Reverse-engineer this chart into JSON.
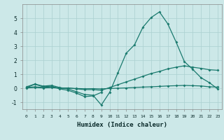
{
  "xlabel": "Humidex (Indice chaleur)",
  "bg_color": "#cce8e8",
  "grid_color": "#aacfcf",
  "line_color": "#1a7a6e",
  "xlim": [
    -0.5,
    23.5
  ],
  "ylim": [
    -1.5,
    6.0
  ],
  "x": [
    0,
    1,
    2,
    3,
    4,
    5,
    6,
    7,
    8,
    9,
    10,
    11,
    12,
    13,
    14,
    15,
    16,
    17,
    18,
    19,
    20,
    21,
    22,
    23
  ],
  "line1": [
    0.1,
    0.3,
    0.15,
    0.2,
    0.05,
    -0.05,
    -0.25,
    -0.45,
    -0.5,
    -1.2,
    -0.3,
    1.1,
    2.5,
    3.1,
    4.35,
    5.05,
    5.45,
    4.6,
    3.3,
    1.9,
    1.35,
    0.75,
    0.4,
    -0.05
  ],
  "line2_x": [
    0,
    1,
    2,
    3,
    4,
    5,
    6,
    7,
    8,
    9
  ],
  "line2_y": [
    0.05,
    0.28,
    0.1,
    0.15,
    -0.05,
    -0.15,
    -0.35,
    -0.6,
    -0.55,
    -0.3
  ],
  "line3": [
    0.05,
    0.1,
    0.05,
    0.1,
    0.0,
    0.02,
    -0.05,
    -0.1,
    -0.1,
    -0.15,
    0.05,
    0.25,
    0.45,
    0.65,
    0.85,
    1.05,
    1.2,
    1.38,
    1.5,
    1.6,
    1.5,
    1.42,
    1.32,
    1.28
  ],
  "line4": [
    0.02,
    0.05,
    0.02,
    0.04,
    0.0,
    0.01,
    -0.02,
    -0.04,
    -0.03,
    -0.05,
    -0.02,
    0.0,
    0.02,
    0.05,
    0.08,
    0.1,
    0.13,
    0.16,
    0.18,
    0.2,
    0.18,
    0.16,
    0.1,
    0.08
  ],
  "yticks": [
    -1,
    0,
    1,
    2,
    3,
    4,
    5
  ],
  "xticks": [
    0,
    1,
    2,
    3,
    4,
    5,
    6,
    7,
    8,
    9,
    10,
    11,
    12,
    13,
    14,
    15,
    16,
    17,
    18,
    19,
    20,
    21,
    22,
    23
  ]
}
